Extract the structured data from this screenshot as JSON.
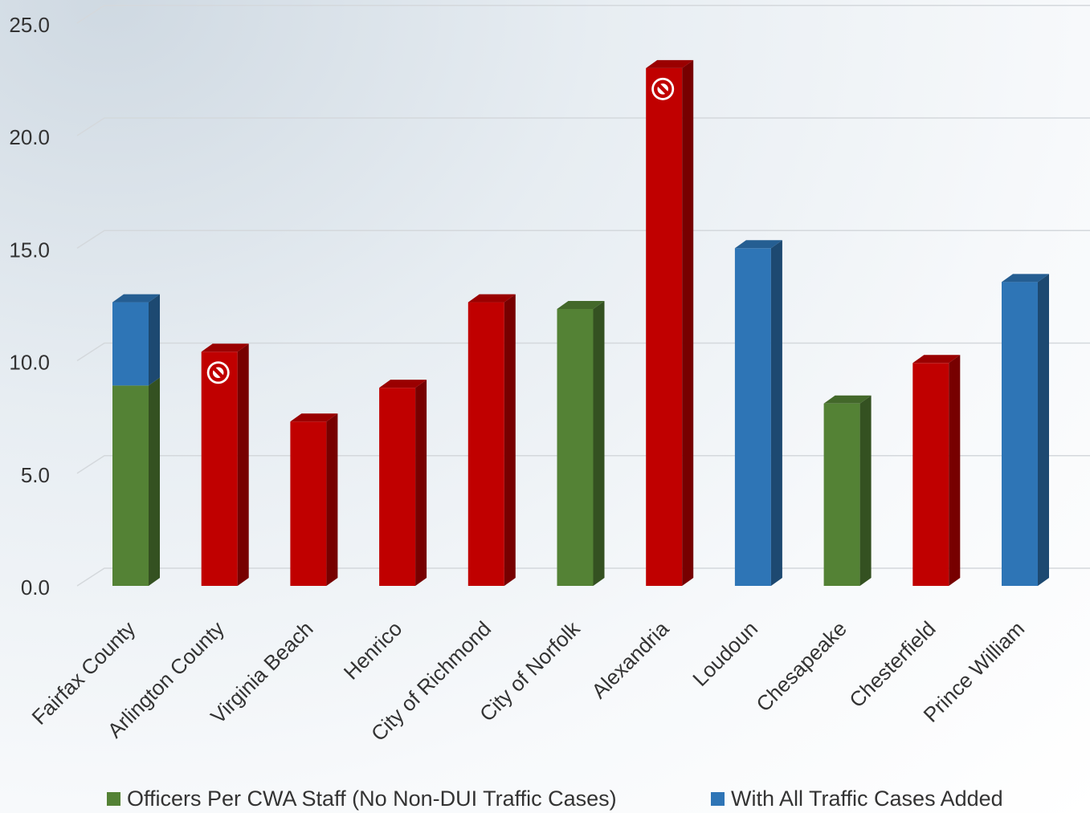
{
  "chart_data": {
    "type": "bar",
    "categories": [
      "Fairfax County",
      "Arlington County",
      "Virginia Beach",
      "Henrico",
      "City of Richmond",
      "City of Norfolk",
      "Alexandria",
      "Loudoun",
      "Chesapeake",
      "Chesterfield",
      "Prince William"
    ],
    "series": [
      {
        "name": "Officers Per CWA Staff (No Non-DUI Traffic Cases)",
        "color": "#548235",
        "values": [
          8.9,
          0,
          0,
          0,
          0,
          12.3,
          0,
          0,
          8.1,
          0,
          0
        ]
      },
      {
        "name": "With All Traffic Cases Added",
        "color": "#2e75b6",
        "values": [
          3.7,
          0,
          0,
          0,
          0,
          0,
          0,
          15.0,
          0,
          0,
          13.5
        ]
      },
      {
        "name": "",
        "color": "#c00000",
        "values": [
          0,
          10.4,
          7.3,
          8.8,
          12.6,
          0,
          23.0,
          0,
          0,
          9.9,
          0
        ]
      }
    ],
    "totals": [
      12.6,
      10.4,
      7.3,
      8.8,
      12.6,
      12.3,
      23.0,
      15.0,
      8.1,
      9.9,
      13.5
    ],
    "prohibited_markers": [
      "Arlington County",
      "Alexandria"
    ],
    "yticks": [
      "0.0",
      "5.0",
      "10.0",
      "15.0",
      "20.0",
      "25.0"
    ],
    "ylim": [
      0,
      25
    ],
    "grid": true,
    "legend_position": "bottom",
    "title": "",
    "xlabel": "",
    "ylabel": ""
  },
  "legend": {
    "items": [
      {
        "label": "Officers Per CWA Staff (No Non-DUI Traffic Cases)",
        "color": "#548235"
      },
      {
        "label": "With All Traffic Cases Added",
        "color": "#2e75b6"
      }
    ]
  }
}
